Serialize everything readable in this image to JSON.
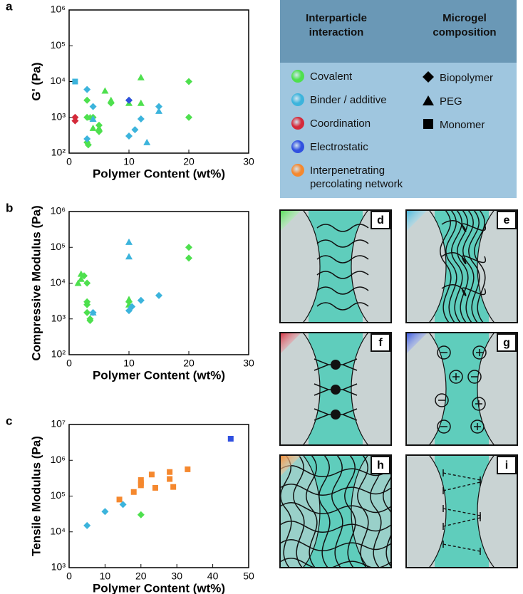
{
  "chart_data": [
    {
      "type": "scatter",
      "panel": "a",
      "x_label": "Polymer Content (wt%)",
      "y_label": "G' (Pa)",
      "yscale": "log",
      "xlim": [
        0,
        30
      ],
      "xticks": [
        0,
        10,
        20,
        30
      ],
      "ylim": [
        100,
        1000000
      ],
      "yticks": [
        {
          "value": 100,
          "label": "10²"
        },
        {
          "value": 1000,
          "label": "10³"
        },
        {
          "value": 10000,
          "label": "10⁴"
        },
        {
          "value": 100000,
          "label": "10⁵"
        },
        {
          "value": 1000000,
          "label": "10⁶"
        }
      ],
      "series": [
        {
          "color": "#4ee04e",
          "marker": "diamond",
          "x": [
            3,
            3,
            4,
            3,
            3.2,
            5,
            5,
            20,
            20,
            7,
            10
          ],
          "values": [
            3000,
            1000,
            1000,
            200,
            170,
            600,
            400,
            10000,
            1000,
            2500,
            3000
          ]
        },
        {
          "color": "#4ee04e",
          "marker": "triangle",
          "x": [
            6,
            7,
            12,
            12,
            10,
            4,
            5,
            3.5
          ],
          "values": [
            5500,
            3000,
            13000,
            2500,
            2500,
            500,
            500,
            1000
          ]
        },
        {
          "color": "#3cb4dc",
          "marker": "diamond",
          "x": [
            3,
            4,
            3,
            10,
            11,
            12,
            15
          ],
          "values": [
            6000,
            2000,
            250,
            300,
            450,
            900,
            2000
          ]
        },
        {
          "color": "#3cb4dc",
          "marker": "triangle",
          "x": [
            4,
            13,
            15
          ],
          "values": [
            900,
            200,
            1500
          ]
        },
        {
          "color": "#3cb4dc",
          "marker": "square",
          "x": [
            1
          ],
          "values": [
            10000
          ]
        },
        {
          "color": "#3050e0",
          "marker": "diamond",
          "x": [
            10
          ],
          "values": [
            3000
          ]
        },
        {
          "color": "#d42a3a",
          "marker": "diamond",
          "x": [
            1,
            1
          ],
          "values": [
            1000,
            800
          ]
        }
      ]
    },
    {
      "type": "scatter",
      "panel": "b",
      "x_label": "Polymer Content (wt%)",
      "y_label": "Compressive Modulus (Pa)",
      "yscale": "log",
      "xlim": [
        0,
        30
      ],
      "xticks": [
        0,
        10,
        20,
        30
      ],
      "ylim": [
        100,
        1000000
      ],
      "yticks": [
        {
          "value": 100,
          "label": "10²"
        },
        {
          "value": 1000,
          "label": "10³"
        },
        {
          "value": 10000,
          "label": "10⁴"
        },
        {
          "value": 100000,
          "label": "10⁵"
        },
        {
          "value": 1000000,
          "label": "10⁶"
        }
      ],
      "series": [
        {
          "color": "#4ee04e",
          "marker": "triangle",
          "x": [
            2,
            2,
            1.5,
            10,
            10
          ],
          "values": [
            18000,
            13000,
            10000,
            3500,
            2500
          ]
        },
        {
          "color": "#4ee04e",
          "marker": "diamond",
          "x": [
            3,
            2.5,
            3,
            3,
            3,
            3.5,
            3.5,
            20,
            20,
            10
          ],
          "values": [
            10000,
            16000,
            3000,
            2500,
            1500,
            1000,
            900,
            100000,
            50000,
            3000
          ]
        },
        {
          "color": "#3cb4dc",
          "marker": "triangle",
          "x": [
            10,
            10,
            4
          ],
          "values": [
            140000,
            55000,
            1500
          ]
        },
        {
          "color": "#3cb4dc",
          "marker": "diamond",
          "x": [
            10,
            10.5,
            12,
            15,
            4
          ],
          "values": [
            1700,
            2200,
            3300,
            4500,
            1500
          ]
        }
      ]
    },
    {
      "type": "scatter",
      "panel": "c",
      "x_label": "Polymer Content (wt%)",
      "y_label": "Tensile Modulus (Pa)",
      "yscale": "log",
      "xlim": [
        0,
        50
      ],
      "xticks": [
        0,
        10,
        20,
        30,
        40,
        50
      ],
      "ylim": [
        1000,
        10000000
      ],
      "yticks": [
        {
          "value": 1000,
          "label": "10³"
        },
        {
          "value": 10000,
          "label": "10⁴"
        },
        {
          "value": 100000,
          "label": "10⁵"
        },
        {
          "value": 1000000,
          "label": "10⁶"
        },
        {
          "value": 10000000,
          "label": "10⁷"
        }
      ],
      "series": [
        {
          "color": "#f5882e",
          "marker": "square",
          "x": [
            14,
            18,
            20,
            20,
            23,
            24,
            28,
            28,
            29,
            33,
            20
          ],
          "values": [
            80000,
            130000,
            200000,
            280000,
            400000,
            170000,
            300000,
            470000,
            180000,
            560000,
            230000
          ]
        },
        {
          "color": "#3cb4dc",
          "marker": "diamond",
          "x": [
            5,
            10,
            15
          ],
          "values": [
            15000,
            37000,
            58000
          ]
        },
        {
          "color": "#4ee04e",
          "marker": "diamond",
          "x": [
            20
          ],
          "values": [
            30000
          ]
        },
        {
          "color": "#3050e0",
          "marker": "square",
          "x": [
            45
          ],
          "values": [
            4000000
          ]
        }
      ]
    }
  ],
  "legend": {
    "interaction_heading": "Interparticle interaction",
    "composition_heading": "Microgel composition",
    "interactions": [
      {
        "label": "Covalent",
        "color": "#4ee04e"
      },
      {
        "label": "Binder / additive",
        "color": "#3cb4dc"
      },
      {
        "label": "Coordination",
        "color": "#d42a3a"
      },
      {
        "label": "Electrostatic",
        "color": "#3050e0"
      },
      {
        "label": "Interpenetrating percolating network",
        "color": "#f5882e"
      }
    ],
    "compositions": [
      {
        "label": "Biopolymer",
        "marker": "diamond"
      },
      {
        "label": "PEG",
        "marker": "triangle"
      },
      {
        "label": "Monomer",
        "marker": "square"
      }
    ]
  },
  "schematic": {
    "panels": [
      {
        "label": "d",
        "color": "#4ee04e"
      },
      {
        "label": "e",
        "color": "#3cb4dc"
      },
      {
        "label": "f",
        "color": "#d42a3a"
      },
      {
        "label": "g",
        "color": "#3050e0"
      },
      {
        "label": "h",
        "color": "#f5882e"
      },
      {
        "label": "i"
      }
    ]
  }
}
